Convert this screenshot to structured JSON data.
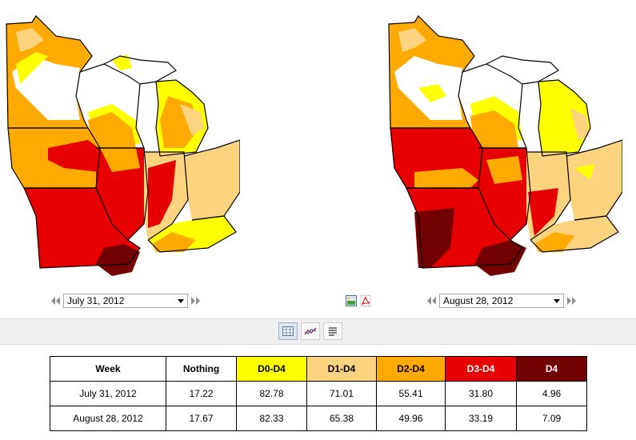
{
  "colors": {
    "nothing": "#ffffff",
    "d0": "#ffff00",
    "d1": "#fcd37f",
    "d2": "#ffaa00",
    "d3": "#e60000",
    "d4": "#730000",
    "border": "#000000"
  },
  "left_panel": {
    "map_icon": "us-midwest-drought-map",
    "prev_icon": "double-left-arrow-icon",
    "next_icon": "double-right-arrow-icon",
    "date": "July 31, 2012"
  },
  "right_panel": {
    "map_icon": "us-midwest-drought-map",
    "prev_icon": "double-left-arrow-icon",
    "next_icon": "double-right-arrow-icon",
    "date": "August 28, 2012"
  },
  "export_icons": [
    "image-icon",
    "pdf-icon"
  ],
  "view_toolbar": [
    "table-view-icon",
    "chart-view-icon",
    "text-view-icon"
  ],
  "table": {
    "headers": [
      "Week",
      "Nothing",
      "D0-D4",
      "D1-D4",
      "D2-D4",
      "D3-D4",
      "D4"
    ],
    "rows": [
      [
        "July 31, 2012",
        "17.22",
        "82.78",
        "71.01",
        "55.41",
        "31.80",
        "4.96"
      ],
      [
        "August 28, 2012",
        "17.67",
        "82.33",
        "65.38",
        "49.96",
        "33.19",
        "7.09"
      ]
    ]
  }
}
